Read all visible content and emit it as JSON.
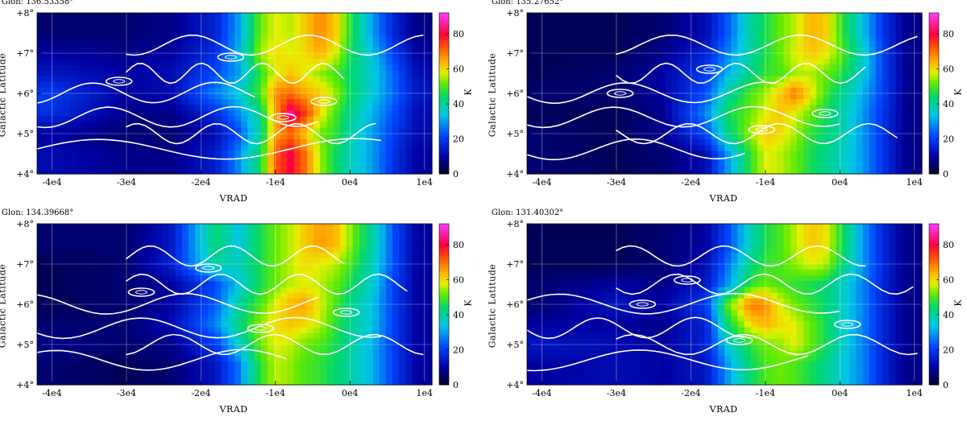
{
  "chart_data": [
    {
      "type": "heatmap",
      "glon": "Glon: 136.53358°",
      "xlabel": "VRAD",
      "ylabel": "Galactic Latitude",
      "cbar_label": "K",
      "x_ticks": [
        "-4e4",
        "-3e4",
        "-2e4",
        "-1e4",
        "0e4",
        "1e4"
      ],
      "y_ticks": [
        "+4°",
        "+5°",
        "+6°",
        "+7°",
        "+8°"
      ],
      "cbar_ticks": [
        "0",
        "20",
        "40",
        "60",
        "80"
      ],
      "xlim": [
        -42000,
        11000
      ],
      "ylim": [
        4,
        8
      ],
      "cbar_range": [
        0,
        92
      ],
      "x_centers_e4": [
        -4.0,
        -3.0,
        -2.4,
        -1.8,
        -1.5,
        -1.2,
        -1.0,
        -0.8,
        -0.6,
        -0.4,
        -0.2,
        0.0,
        0.3,
        0.6,
        0.9
      ],
      "y_centers_deg": [
        4.5,
        5.0,
        5.5,
        6.0,
        6.5,
        7.0,
        7.5
      ],
      "values_K": [
        [
          12,
          8,
          8,
          15,
          28,
          45,
          72,
          80,
          70,
          55,
          45,
          38,
          30,
          18,
          10
        ],
        [
          10,
          6,
          6,
          12,
          22,
          40,
          65,
          70,
          62,
          52,
          48,
          40,
          30,
          20,
          12
        ],
        [
          18,
          8,
          8,
          18,
          28,
          42,
          65,
          85,
          75,
          60,
          50,
          42,
          32,
          22,
          12
        ],
        [
          20,
          10,
          12,
          28,
          35,
          50,
          68,
          70,
          65,
          62,
          55,
          45,
          35,
          25,
          14
        ],
        [
          14,
          10,
          12,
          22,
          30,
          48,
          58,
          62,
          58,
          54,
          50,
          44,
          36,
          24,
          12
        ],
        [
          10,
          8,
          10,
          18,
          32,
          55,
          60,
          58,
          60,
          65,
          58,
          46,
          34,
          20,
          10
        ],
        [
          6,
          6,
          8,
          16,
          30,
          52,
          58,
          56,
          62,
          68,
          62,
          48,
          30,
          16,
          8
        ]
      ]
    },
    {
      "type": "heatmap",
      "glon": "Glon: 135.27652°",
      "xlabel": "VRAD",
      "ylabel": "Galactic Latitude",
      "cbar_label": "K",
      "x_ticks": [
        "-4e4",
        "-3e4",
        "-2e4",
        "-1e4",
        "0e4",
        "1e4"
      ],
      "y_ticks": [
        "+4°",
        "+5°",
        "+6°",
        "+7°",
        "+8°"
      ],
      "cbar_ticks": [
        "0",
        "20",
        "40",
        "60",
        "80"
      ],
      "xlim": [
        -42000,
        11000
      ],
      "ylim": [
        4,
        8
      ],
      "cbar_range": [
        0,
        92
      ],
      "x_centers_e4": [
        -4.0,
        -3.0,
        -2.4,
        -1.8,
        -1.5,
        -1.2,
        -1.0,
        -0.8,
        -0.6,
        -0.4,
        -0.2,
        0.0,
        0.3,
        0.6,
        0.9
      ],
      "y_centers_deg": [
        4.5,
        5.0,
        5.5,
        6.0,
        6.5,
        7.0,
        7.5
      ],
      "values_K": [
        [
          6,
          4,
          6,
          12,
          30,
          48,
          58,
          56,
          52,
          46,
          42,
          38,
          30,
          18,
          8
        ],
        [
          6,
          4,
          8,
          22,
          42,
          55,
          62,
          60,
          55,
          48,
          44,
          40,
          30,
          18,
          8
        ],
        [
          4,
          4,
          8,
          28,
          45,
          52,
          58,
          62,
          58,
          52,
          46,
          40,
          30,
          18,
          8
        ],
        [
          6,
          6,
          10,
          22,
          40,
          50,
          55,
          62,
          70,
          60,
          50,
          42,
          32,
          20,
          8
        ],
        [
          4,
          6,
          10,
          20,
          32,
          42,
          48,
          50,
          55,
          56,
          52,
          48,
          36,
          20,
          8
        ],
        [
          4,
          4,
          8,
          16,
          28,
          40,
          46,
          52,
          58,
          62,
          60,
          52,
          38,
          20,
          8
        ],
        [
          4,
          4,
          6,
          12,
          24,
          40,
          46,
          52,
          56,
          64,
          62,
          50,
          34,
          18,
          8
        ]
      ]
    },
    {
      "type": "heatmap",
      "glon": "Glon: 134.39668°",
      "xlabel": "VRAD",
      "ylabel": "Galactic Latitude",
      "cbar_label": "K",
      "x_ticks": [
        "-4e4",
        "-3e4",
        "-2e4",
        "-1e4",
        "0e4",
        "1e4"
      ],
      "y_ticks": [
        "+4°",
        "+5°",
        "+6°",
        "+7°",
        "+8°"
      ],
      "cbar_ticks": [
        "0",
        "20",
        "40",
        "60",
        "80"
      ],
      "xlim": [
        -42000,
        11000
      ],
      "ylim": [
        4,
        8
      ],
      "cbar_range": [
        0,
        92
      ],
      "x_centers_e4": [
        -4.0,
        -3.0,
        -2.4,
        -1.8,
        -1.5,
        -1.2,
        -1.0,
        -0.8,
        -0.6,
        -0.4,
        -0.2,
        0.0,
        0.3,
        0.6,
        0.9
      ],
      "y_centers_deg": [
        4.5,
        5.0,
        5.5,
        6.0,
        6.5,
        7.0,
        7.5
      ],
      "values_K": [
        [
          6,
          4,
          6,
          14,
          26,
          48,
          56,
          54,
          50,
          48,
          44,
          40,
          32,
          20,
          10
        ],
        [
          8,
          6,
          8,
          20,
          36,
          52,
          58,
          56,
          52,
          50,
          46,
          40,
          32,
          20,
          10
        ],
        [
          6,
          6,
          12,
          28,
          42,
          54,
          60,
          62,
          60,
          56,
          48,
          42,
          34,
          20,
          10
        ],
        [
          4,
          6,
          10,
          24,
          40,
          50,
          58,
          64,
          66,
          58,
          50,
          42,
          34,
          20,
          10
        ],
        [
          4,
          6,
          10,
          22,
          34,
          46,
          52,
          56,
          58,
          56,
          52,
          46,
          36,
          20,
          10
        ],
        [
          4,
          6,
          16,
          40,
          38,
          46,
          52,
          56,
          60,
          58,
          56,
          50,
          38,
          22,
          10
        ],
        [
          6,
          6,
          14,
          44,
          34,
          46,
          52,
          56,
          62,
          66,
          64,
          54,
          40,
          22,
          10
        ]
      ]
    },
    {
      "type": "heatmap",
      "glon": "Glon: 131.40302°",
      "xlabel": "VRAD",
      "ylabel": "Galactic Latitude",
      "cbar_label": "K",
      "x_ticks": [
        "-4e4",
        "-3e4",
        "-2e4",
        "-1e4",
        "0e4",
        "1e4"
      ],
      "y_ticks": [
        "+4°",
        "+5°",
        "+6°",
        "+7°",
        "+8°"
      ],
      "cbar_ticks": [
        "0",
        "20",
        "40",
        "60",
        "80"
      ],
      "xlim": [
        -42000,
        11000
      ],
      "ylim": [
        4,
        8
      ],
      "cbar_range": [
        0,
        92
      ],
      "x_centers_e4": [
        -4.0,
        -3.0,
        -2.4,
        -1.8,
        -1.5,
        -1.2,
        -1.0,
        -0.8,
        -0.6,
        -0.4,
        -0.2,
        0.0,
        0.3,
        0.6,
        0.9
      ],
      "y_centers_deg": [
        4.5,
        5.0,
        5.5,
        6.0,
        6.5,
        7.0,
        7.5
      ],
      "values_K": [
        [
          10,
          12,
          10,
          14,
          30,
          44,
          50,
          52,
          50,
          46,
          42,
          36,
          28,
          16,
          8
        ],
        [
          14,
          12,
          10,
          16,
          36,
          48,
          52,
          54,
          58,
          52,
          46,
          38,
          28,
          16,
          8
        ],
        [
          10,
          10,
          8,
          16,
          44,
          60,
          64,
          60,
          58,
          52,
          46,
          38,
          28,
          16,
          8
        ],
        [
          6,
          14,
          10,
          20,
          52,
          70,
          68,
          58,
          52,
          48,
          44,
          38,
          28,
          16,
          8
        ],
        [
          6,
          10,
          8,
          14,
          30,
          48,
          52,
          50,
          48,
          46,
          44,
          38,
          28,
          16,
          8
        ],
        [
          4,
          4,
          6,
          12,
          26,
          42,
          48,
          50,
          54,
          58,
          56,
          46,
          30,
          16,
          8
        ],
        [
          4,
          4,
          6,
          10,
          22,
          38,
          46,
          50,
          56,
          62,
          60,
          48,
          30,
          16,
          8
        ]
      ]
    }
  ]
}
